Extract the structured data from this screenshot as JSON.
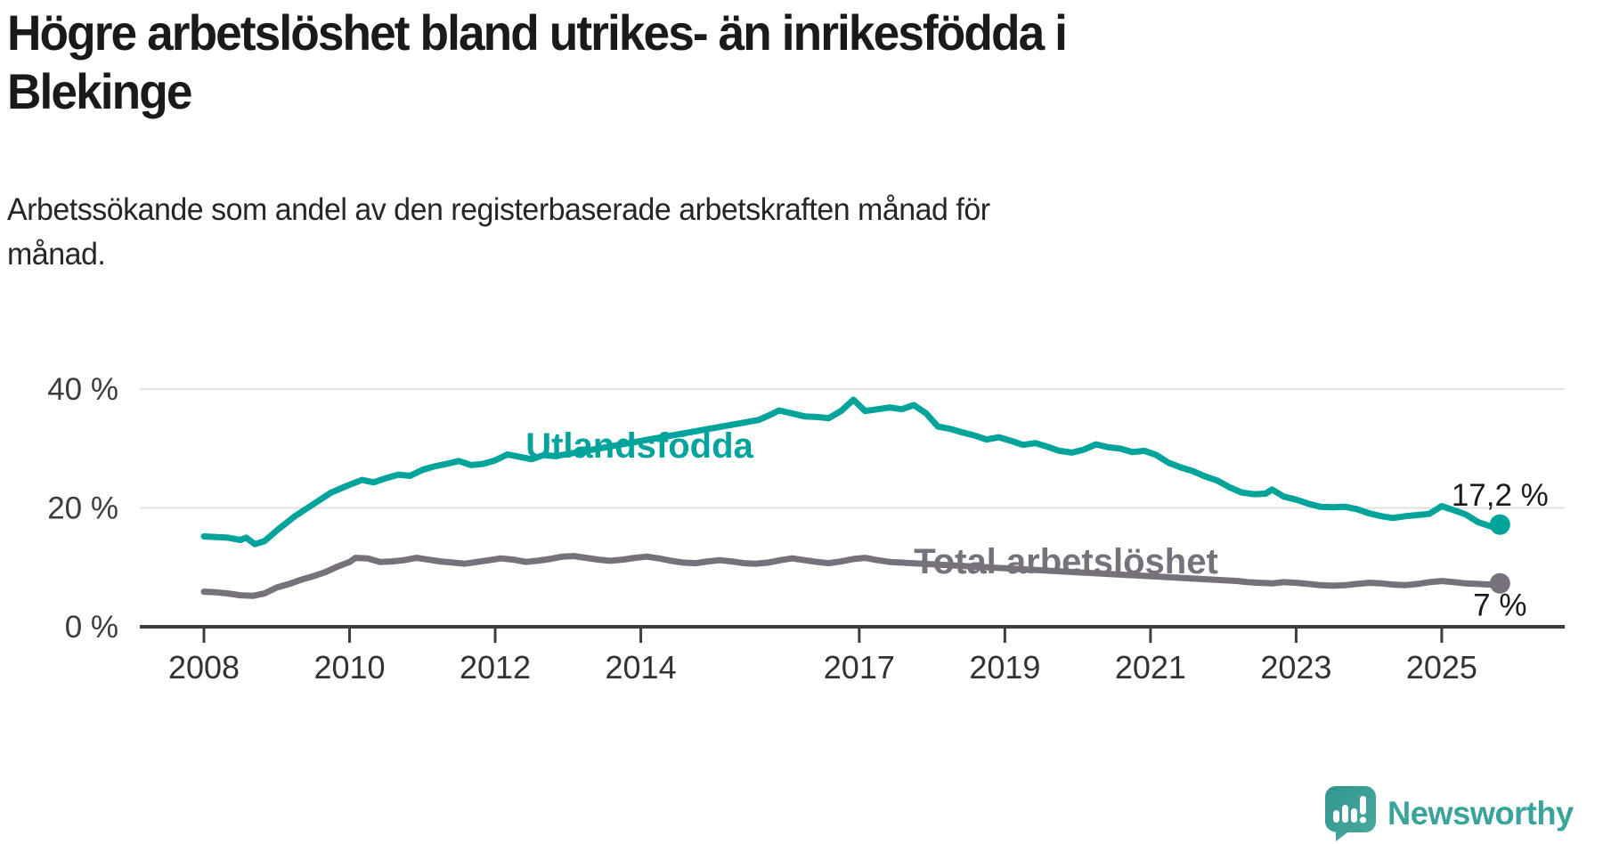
{
  "header": {
    "title_lines": [
      "Högre arbetslöshet bland utrikes- än inrikesfödda i",
      "Blekinge"
    ],
    "subtitle_lines": [
      "Arbetssökande som andel av den registerbaserade arbetskraften månad för",
      "månad."
    ]
  },
  "footer": {
    "brand_name": "Newsworthy",
    "brand_color": "#3aa39c"
  },
  "chart_data": {
    "type": "line",
    "title": "Högre arbetslöshet bland utrikes- än inrikesfödda i Blekinge",
    "subtitle": "Arbetssökande som andel av den registerbaserade arbetskraften månad för månad.",
    "xlabel": "",
    "ylabel": "",
    "x_range": [
      2008.0,
      2025.8
    ],
    "ylim": [
      0,
      42
    ],
    "grid": "horizontal",
    "legend_position": "inline-labels",
    "y_ticks": [
      {
        "value": 0,
        "label": "0 %"
      },
      {
        "value": 20,
        "label": "20 %"
      },
      {
        "value": 40,
        "label": "40 %"
      }
    ],
    "x_ticks": [
      {
        "year": 2008,
        "label": "2008"
      },
      {
        "year": 2010,
        "label": "2010"
      },
      {
        "year": 2012,
        "label": "2012"
      },
      {
        "year": 2014,
        "label": "2014"
      },
      {
        "year": 2017,
        "label": "2017"
      },
      {
        "year": 2019,
        "label": "2019"
      },
      {
        "year": 2021,
        "label": "2021"
      },
      {
        "year": 2023,
        "label": "2023"
      },
      {
        "year": 2025,
        "label": "2025"
      }
    ],
    "series": [
      {
        "id": "utlandsfodda",
        "name": "Utlandsfödda",
        "color": "#00a49b",
        "end_label": "17,2 %",
        "end_value": 17.2,
        "label_gap_years": [
          2012.9,
          2015.58
        ],
        "points": [
          [
            2008.0,
            15.2
          ],
          [
            2008.17,
            15.1
          ],
          [
            2008.33,
            15.0
          ],
          [
            2008.5,
            14.6
          ],
          [
            2008.58,
            15.0
          ],
          [
            2008.7,
            13.9
          ],
          [
            2008.83,
            14.4
          ],
          [
            2009.0,
            16.2
          ],
          [
            2009.25,
            18.6
          ],
          [
            2009.5,
            20.6
          ],
          [
            2009.75,
            22.6
          ],
          [
            2010.0,
            23.9
          ],
          [
            2010.17,
            24.7
          ],
          [
            2010.33,
            24.3
          ],
          [
            2010.5,
            25.0
          ],
          [
            2010.67,
            25.6
          ],
          [
            2010.83,
            25.4
          ],
          [
            2011.0,
            26.4
          ],
          [
            2011.17,
            27.0
          ],
          [
            2011.33,
            27.4
          ],
          [
            2011.5,
            27.9
          ],
          [
            2011.67,
            27.2
          ],
          [
            2011.83,
            27.4
          ],
          [
            2012.0,
            28.0
          ],
          [
            2012.17,
            29.0
          ],
          [
            2012.33,
            28.6
          ],
          [
            2012.5,
            28.2
          ],
          [
            2012.67,
            28.9
          ],
          [
            2012.83,
            28.7
          ],
          [
            2015.62,
            34.8
          ],
          [
            2015.75,
            35.5
          ],
          [
            2015.9,
            36.4
          ],
          [
            2016.08,
            35.9
          ],
          [
            2016.25,
            35.4
          ],
          [
            2016.42,
            35.3
          ],
          [
            2016.58,
            35.1
          ],
          [
            2016.75,
            36.3
          ],
          [
            2016.92,
            38.2
          ],
          [
            2017.08,
            36.3
          ],
          [
            2017.25,
            36.6
          ],
          [
            2017.42,
            36.9
          ],
          [
            2017.58,
            36.6
          ],
          [
            2017.75,
            37.3
          ],
          [
            2017.92,
            35.9
          ],
          [
            2018.08,
            33.7
          ],
          [
            2018.25,
            33.3
          ],
          [
            2018.42,
            32.7
          ],
          [
            2018.58,
            32.2
          ],
          [
            2018.75,
            31.5
          ],
          [
            2018.92,
            31.9
          ],
          [
            2019.08,
            31.3
          ],
          [
            2019.25,
            30.6
          ],
          [
            2019.42,
            30.9
          ],
          [
            2019.58,
            30.3
          ],
          [
            2019.75,
            29.6
          ],
          [
            2019.92,
            29.3
          ],
          [
            2020.08,
            29.8
          ],
          [
            2020.25,
            30.7
          ],
          [
            2020.42,
            30.2
          ],
          [
            2020.58,
            30.0
          ],
          [
            2020.75,
            29.4
          ],
          [
            2020.92,
            29.6
          ],
          [
            2021.08,
            28.9
          ],
          [
            2021.25,
            27.6
          ],
          [
            2021.42,
            26.8
          ],
          [
            2021.58,
            26.2
          ],
          [
            2021.75,
            25.3
          ],
          [
            2021.92,
            24.6
          ],
          [
            2022.08,
            23.5
          ],
          [
            2022.25,
            22.6
          ],
          [
            2022.42,
            22.3
          ],
          [
            2022.58,
            22.4
          ],
          [
            2022.67,
            23.1
          ],
          [
            2022.83,
            21.9
          ],
          [
            2023.0,
            21.4
          ],
          [
            2023.17,
            20.7
          ],
          [
            2023.33,
            20.2
          ],
          [
            2023.5,
            20.1
          ],
          [
            2023.67,
            20.2
          ],
          [
            2023.83,
            19.8
          ],
          [
            2024.0,
            19.1
          ],
          [
            2024.17,
            18.6
          ],
          [
            2024.33,
            18.3
          ],
          [
            2024.5,
            18.6
          ],
          [
            2024.67,
            18.8
          ],
          [
            2024.83,
            19.0
          ],
          [
            2025.0,
            20.3
          ],
          [
            2025.17,
            19.6
          ],
          [
            2025.33,
            18.9
          ],
          [
            2025.5,
            17.6
          ],
          [
            2025.67,
            16.9
          ],
          [
            2025.8,
            17.2
          ]
        ]
      },
      {
        "id": "total",
        "name": "Total arbetslöshet",
        "color": "#76717a",
        "end_label": "7 %",
        "end_value": 7.3,
        "label_gap_years": [
          2017.5,
          2022.15
        ],
        "points": [
          [
            2008.0,
            5.9
          ],
          [
            2008.17,
            5.8
          ],
          [
            2008.33,
            5.6
          ],
          [
            2008.5,
            5.3
          ],
          [
            2008.67,
            5.2
          ],
          [
            2008.83,
            5.6
          ],
          [
            2009.0,
            6.6
          ],
          [
            2009.17,
            7.2
          ],
          [
            2009.33,
            7.9
          ],
          [
            2009.5,
            8.5
          ],
          [
            2009.67,
            9.2
          ],
          [
            2009.83,
            10.1
          ],
          [
            2010.0,
            10.9
          ],
          [
            2010.08,
            11.6
          ],
          [
            2010.25,
            11.5
          ],
          [
            2010.42,
            10.9
          ],
          [
            2010.58,
            11.0
          ],
          [
            2010.75,
            11.2
          ],
          [
            2010.92,
            11.6
          ],
          [
            2011.08,
            11.3
          ],
          [
            2011.25,
            11.0
          ],
          [
            2011.42,
            10.8
          ],
          [
            2011.58,
            10.6
          ],
          [
            2011.75,
            10.9
          ],
          [
            2011.92,
            11.2
          ],
          [
            2012.08,
            11.5
          ],
          [
            2012.25,
            11.3
          ],
          [
            2012.42,
            10.9
          ],
          [
            2012.58,
            11.1
          ],
          [
            2012.75,
            11.4
          ],
          [
            2012.92,
            11.8
          ],
          [
            2013.08,
            11.9
          ],
          [
            2013.25,
            11.6
          ],
          [
            2013.42,
            11.3
          ],
          [
            2013.58,
            11.1
          ],
          [
            2013.75,
            11.3
          ],
          [
            2013.92,
            11.6
          ],
          [
            2014.08,
            11.8
          ],
          [
            2014.25,
            11.5
          ],
          [
            2014.42,
            11.1
          ],
          [
            2014.58,
            10.8
          ],
          [
            2014.75,
            10.7
          ],
          [
            2014.92,
            11.0
          ],
          [
            2015.08,
            11.2
          ],
          [
            2015.25,
            11.0
          ],
          [
            2015.42,
            10.7
          ],
          [
            2015.58,
            10.6
          ],
          [
            2015.75,
            10.8
          ],
          [
            2015.92,
            11.2
          ],
          [
            2016.08,
            11.5
          ],
          [
            2016.25,
            11.2
          ],
          [
            2016.42,
            10.9
          ],
          [
            2016.58,
            10.7
          ],
          [
            2016.75,
            11.0
          ],
          [
            2016.92,
            11.4
          ],
          [
            2017.08,
            11.6
          ],
          [
            2017.25,
            11.2
          ],
          [
            2017.42,
            10.9
          ],
          [
            2022.2,
            7.7
          ],
          [
            2022.33,
            7.5
          ],
          [
            2022.5,
            7.4
          ],
          [
            2022.67,
            7.3
          ],
          [
            2022.83,
            7.5
          ],
          [
            2023.0,
            7.4
          ],
          [
            2023.17,
            7.2
          ],
          [
            2023.33,
            7.0
          ],
          [
            2023.5,
            6.9
          ],
          [
            2023.67,
            7.0
          ],
          [
            2023.83,
            7.2
          ],
          [
            2024.0,
            7.4
          ],
          [
            2024.17,
            7.3
          ],
          [
            2024.33,
            7.1
          ],
          [
            2024.5,
            7.0
          ],
          [
            2024.67,
            7.2
          ],
          [
            2024.83,
            7.5
          ],
          [
            2025.0,
            7.7
          ],
          [
            2025.17,
            7.5
          ],
          [
            2025.33,
            7.3
          ],
          [
            2025.5,
            7.2
          ],
          [
            2025.67,
            7.1
          ],
          [
            2025.8,
            7.3
          ]
        ]
      }
    ]
  }
}
